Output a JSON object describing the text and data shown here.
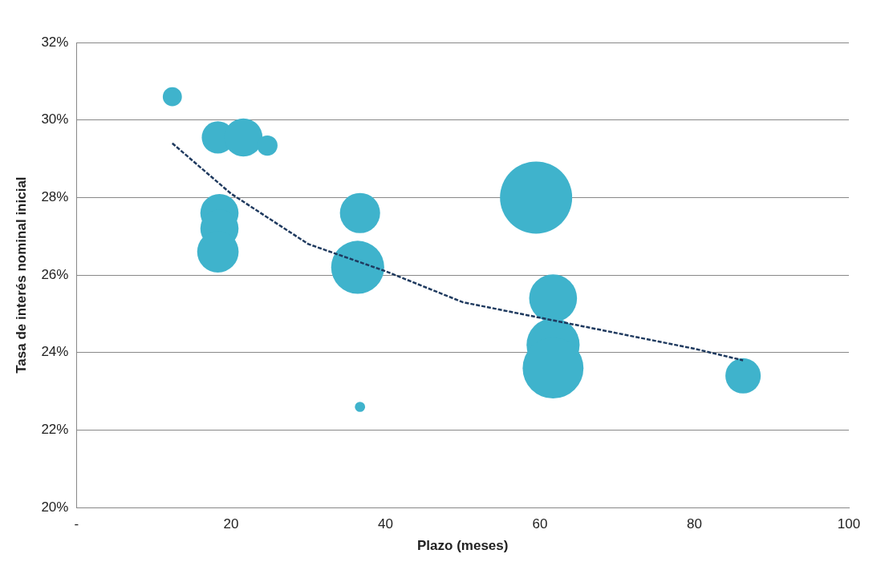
{
  "chart_data": {
    "type": "bubble",
    "xlabel": "Plazo (meses)",
    "ylabel": "Tasa de interés nominal inicial",
    "xlim": [
      0,
      100
    ],
    "xticks": [
      {
        "value": 0,
        "label": "-"
      },
      20,
      40,
      60,
      80,
      100
    ],
    "ylim": [
      20,
      32
    ],
    "yticks": [
      {
        "value": 20,
        "label": "20%"
      },
      {
        "value": 22,
        "label": "22%"
      },
      {
        "value": 24,
        "label": "24%"
      },
      {
        "value": 26,
        "label": "26%"
      },
      {
        "value": 28,
        "label": "28%"
      },
      {
        "value": 30,
        "label": "30%"
      },
      {
        "value": 32,
        "label": "32%"
      }
    ],
    "grid": "y",
    "legend": false,
    "series": [
      {
        "color": "#3fb3cc",
        "x": [
          12.4,
          18.3,
          21.6,
          24.7,
          18.5,
          18.5,
          18.3,
          36.7,
          36.4,
          36.7,
          59.5,
          61.7,
          61.7,
          61.7,
          86.3
        ],
        "values": [
          30.6,
          29.55,
          29.55,
          29.34,
          27.6,
          27.2,
          26.6,
          27.6,
          26.2,
          22.6,
          28.0,
          25.4,
          24.2,
          23.6,
          23.4
        ],
        "sizes": [
          0.07,
          0.2,
          0.28,
          0.08,
          0.28,
          0.28,
          0.33,
          0.31,
          0.54,
          0.02,
          1,
          0.44,
          0.54,
          0.71,
          0.24
        ]
      },
      {
        "type": "line",
        "color": "#1f3a5f",
        "line_style": "dashed",
        "marker": "none",
        "x": [
          12.4,
          20,
          30,
          40,
          50,
          60,
          70,
          80,
          86.3
        ],
        "values": [
          29.4,
          28.1,
          26.8,
          26.1,
          25.3,
          24.9,
          24.5,
          24.1,
          23.8
        ]
      }
    ]
  }
}
